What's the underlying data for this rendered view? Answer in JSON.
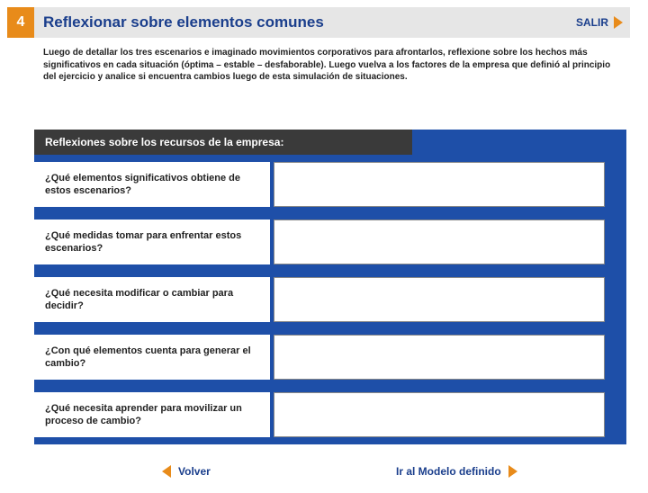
{
  "step_number": "4",
  "title": "Reflexionar sobre elementos comunes",
  "salir_label": "SALIR",
  "intro_text": "Luego de detallar los tres escenarios e imaginado movimientos corporativos para afrontarlos, reflexione sobre los hechos más significativos en cada situación (óptima – estable – desfaborable).\nLuego vuelva a los factores de la empresa que definió al principio del ejercicio y analice si encuentra cambios luego de esta simulación de situaciones.",
  "subheader": "Reflexiones sobre los recursos de la empresa:",
  "questions": [
    "¿Qué elementos significativos obtiene de estos escenarios?",
    "¿Qué medidas tomar para enfrentar estos escenarios?",
    "¿Qué necesita modificar o cambiar para decidir?",
    "¿Con qué elementos cuenta para generar el cambio?",
    "¿Qué necesita aprender para movilizar un proceso de cambio?"
  ],
  "volver_label": "Volver",
  "modelo_label": "Ir al Modelo definido",
  "colors": {
    "orange": "#e88b1a",
    "blue_panel": "#1e4fa8",
    "link_blue": "#1a3e8c",
    "header_gray": "#e6e6e6",
    "sub_gray": "#3a3a3a"
  }
}
